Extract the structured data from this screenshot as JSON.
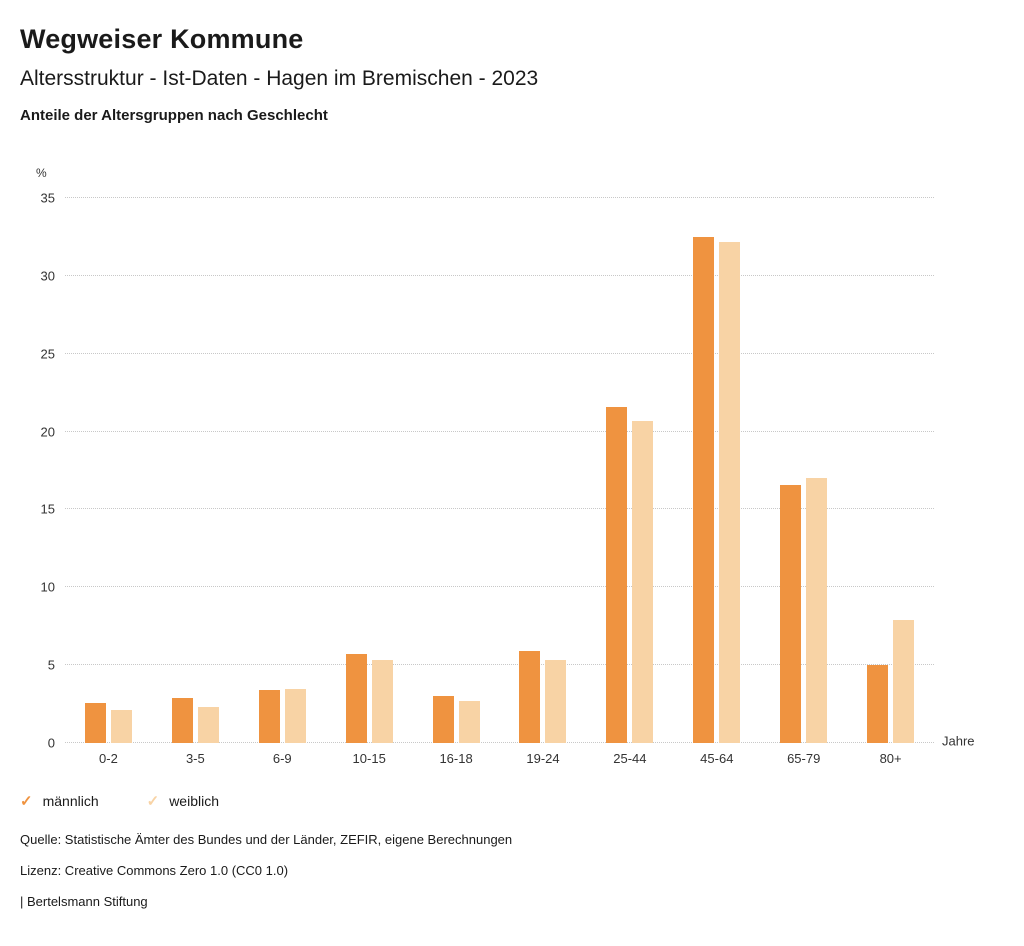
{
  "header": {
    "title": "Wegweiser Kommune",
    "subtitle": "Altersstruktur - Ist-Daten - Hagen im Bremischen - 2023",
    "description": "Anteile der Altersgruppen nach Geschlecht"
  },
  "chart_data": {
    "type": "bar",
    "title": "Anteile der Altersgruppen nach Geschlecht",
    "unit_y": "%",
    "unit_x": "Jahre",
    "ylim": [
      0,
      35
    ],
    "ytick_step": 5,
    "grid": "dotted-horizontal",
    "legend_position": "bottom-left",
    "categories": [
      "0-2",
      "3-5",
      "6-9",
      "10-15",
      "16-18",
      "19-24",
      "25-44",
      "45-64",
      "65-79",
      "80+"
    ],
    "series": [
      {
        "name": "männlich",
        "color": "#ef9340",
        "values": [
          2.6,
          2.9,
          3.4,
          5.7,
          3.0,
          5.9,
          21.6,
          32.5,
          16.6,
          5.0
        ]
      },
      {
        "name": "weiblich",
        "color": "#f8d3a5",
        "values": [
          2.1,
          2.3,
          3.5,
          5.3,
          2.7,
          5.3,
          20.7,
          32.2,
          17.0,
          7.9
        ]
      }
    ]
  },
  "legend": {
    "items": [
      {
        "label": "männlich",
        "color": "#ef9340",
        "icon": "check"
      },
      {
        "label": "weiblich",
        "color": "#f8d3a5",
        "icon": "check"
      }
    ]
  },
  "footer": {
    "source": "Quelle: Statistische Ämter des Bundes und der Länder, ZEFIR, eigene Berechnungen",
    "license": "Lizenz: Creative Commons Zero 1.0 (CC0 1.0)",
    "attribution": "| Bertelsmann Stiftung"
  }
}
